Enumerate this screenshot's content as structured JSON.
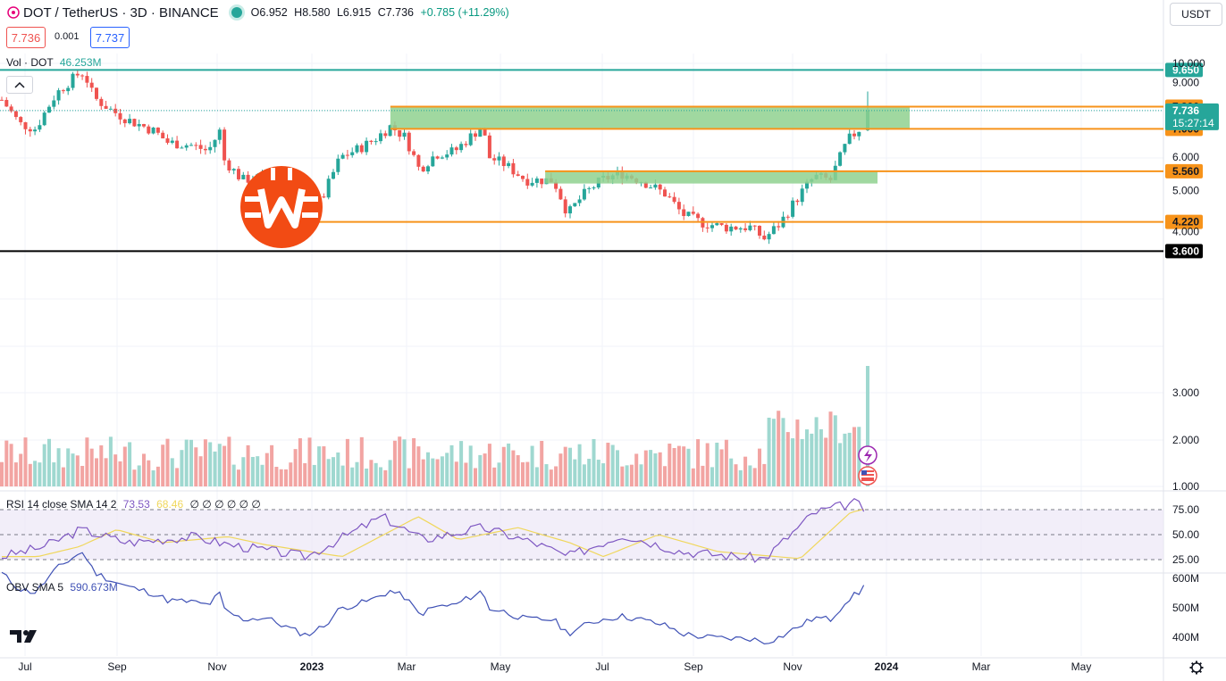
{
  "header": {
    "symbol": "DOT / TetherUS · 3D · BINANCE",
    "open": "O6.952",
    "high": "H8.580",
    "low": "L6.915",
    "close": "C7.736",
    "change": "+0.785 (+11.29%)",
    "sell_price": "7.736",
    "spread": "0.001",
    "buy_price": "7.737"
  },
  "currency_select": "USDT",
  "volume_legend": {
    "label": "Vol · DOT",
    "value": "46.253M"
  },
  "rsi_legend": {
    "label": "RSI 14 close SMA 14 2",
    "rsi": "73.53",
    "sma": "68.46",
    "rest": "∅ ∅ ∅ ∅ ∅ ∅"
  },
  "obv_legend": {
    "label": "OBV SMA 5",
    "value": "590.673M"
  },
  "price_axis": [
    "10.000",
    "9.000",
    "8.000",
    "6.000",
    "5.000",
    "4.000",
    "3.000",
    "2.000",
    "1.000"
  ],
  "price_tags": {
    "t965": "9.650",
    "t790": "7.900",
    "last": "7.736",
    "countdown": "15:27:14",
    "t700": "7.000",
    "t556": "5.560",
    "t422": "4.220",
    "t360": "3.600"
  },
  "rsi_axis": [
    "75.00",
    "50.00",
    "25.00"
  ],
  "obv_axis": [
    "600M",
    "500M",
    "400M"
  ],
  "time_axis": [
    "Jul",
    "Sep",
    "Nov",
    "2023",
    "Mar",
    "May",
    "Jul",
    "Sep",
    "Nov",
    "2024",
    "Mar",
    "May"
  ],
  "colors": {
    "up": "#26a69a",
    "down": "#ef5350",
    "level": "#f7931a",
    "zone": "#8fd18f",
    "rsi": "#7e57c2",
    "obv": "#3f51b5",
    "accent": "#f24b14"
  },
  "icons": [
    "settings-gear-icon",
    "tradingview-logo-icon",
    "lightning-icon",
    "us-flag-icon",
    "chevron-up-icon",
    "exchange-logo-icon"
  ],
  "chart_data": {
    "type": "candlestick",
    "title": "DOT / TetherUS · 3D · BINANCE",
    "price_axis_labels": [
      "10.000",
      "9.000",
      "8.000",
      "6.000",
      "5.000",
      "4.000",
      "3.000",
      "2.000",
      "1.000"
    ],
    "horizontal_levels": [
      9.65,
      7.9,
      7.0,
      5.56,
      4.22,
      3.6
    ],
    "last_price": 7.736,
    "close_path": [
      [
        "2022-06-24",
        8.2
      ],
      [
        "2022-07-05",
        7.2
      ],
      [
        "2022-07-15",
        7.0
      ],
      [
        "2022-07-28",
        8.5
      ],
      [
        "2022-08-10",
        9.4
      ],
      [
        "2022-08-14",
        9.5
      ],
      [
        "2022-08-20",
        8.3
      ],
      [
        "2022-09-01",
        7.7
      ],
      [
        "2022-09-12",
        7.3
      ],
      [
        "2022-09-20",
        7.1
      ],
      [
        "2022-09-27",
        6.9
      ],
      [
        "2022-10-05",
        6.5
      ],
      [
        "2022-10-20",
        6.4
      ],
      [
        "2022-10-30",
        6.2
      ],
      [
        "2022-11-07",
        7.0
      ],
      [
        "2022-11-09",
        5.9
      ],
      [
        "2022-11-20",
        5.3
      ],
      [
        "2022-12-05",
        5.4
      ],
      [
        "2022-12-20",
        4.7
      ],
      [
        "2022-12-30",
        4.3
      ],
      [
        "2023-01-10",
        4.9
      ],
      [
        "2023-01-20",
        6.0
      ],
      [
        "2023-02-01",
        6.3
      ],
      [
        "2023-02-10",
        6.6
      ],
      [
        "2023-02-20",
        7.1
      ],
      [
        "2023-03-01",
        6.7
      ],
      [
        "2023-03-10",
        5.6
      ],
      [
        "2023-03-20",
        6.1
      ],
      [
        "2023-04-01",
        6.2
      ],
      [
        "2023-04-18",
        7.1
      ],
      [
        "2023-04-22",
        6.0
      ],
      [
        "2023-05-01",
        5.8
      ],
      [
        "2023-05-15",
        5.3
      ],
      [
        "2023-06-01",
        5.3
      ],
      [
        "2023-06-10",
        4.4
      ],
      [
        "2023-06-20",
        4.9
      ],
      [
        "2023-07-01",
        5.3
      ],
      [
        "2023-07-13",
        5.5
      ],
      [
        "2023-07-25",
        5.3
      ],
      [
        "2023-08-10",
        4.9
      ],
      [
        "2023-08-20",
        4.4
      ],
      [
        "2023-09-01",
        4.2
      ],
      [
        "2023-09-15",
        4.1
      ],
      [
        "2023-10-01",
        4.1
      ],
      [
        "2023-10-10",
        3.85
      ],
      [
        "2023-10-20",
        4.2
      ],
      [
        "2023-11-01",
        4.9
      ],
      [
        "2023-11-10",
        5.4
      ],
      [
        "2023-11-20",
        5.3
      ],
      [
        "2023-12-01",
        6.6
      ],
      [
        "2023-12-08",
        7.0
      ],
      [
        "2023-12-13",
        7.7
      ]
    ],
    "rsi_path": [
      [
        "2022-06-24",
        28
      ],
      [
        "2022-07-20",
        38
      ],
      [
        "2022-08-12",
        55
      ],
      [
        "2022-09-10",
        42
      ],
      [
        "2022-10-20",
        48
      ],
      [
        "2022-11-12",
        40
      ],
      [
        "2022-12-30",
        28
      ],
      [
        "2023-02-15",
        68
      ],
      [
        "2023-03-12",
        45
      ],
      [
        "2023-04-18",
        57
      ],
      [
        "2023-05-20",
        42
      ],
      [
        "2023-06-10",
        28
      ],
      [
        "2023-07-14",
        50
      ],
      [
        "2023-08-20",
        33
      ],
      [
        "2023-10-10",
        26
      ],
      [
        "2023-11-10",
        72
      ],
      [
        "2023-12-05",
        82
      ],
      [
        "2023-12-13",
        73.53
      ]
    ]
  }
}
